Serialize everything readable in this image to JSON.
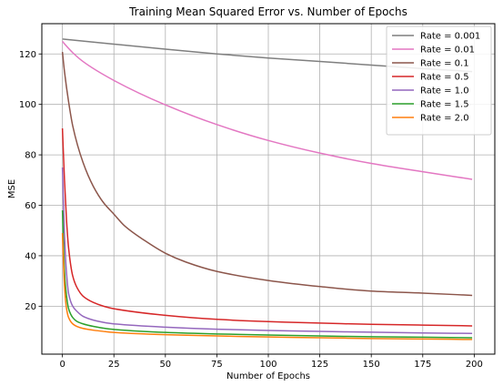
{
  "chart_data": {
    "type": "line",
    "title": "Training Mean Squared Error vs. Number of Epochs",
    "xlabel": "Number of Epochs",
    "ylabel": "MSE",
    "xlim": [
      -10,
      210
    ],
    "ylim": [
      1,
      132
    ],
    "xticks": [
      0,
      25,
      50,
      75,
      100,
      125,
      150,
      175,
      200
    ],
    "yticks": [
      20,
      40,
      60,
      80,
      100,
      120
    ],
    "grid": true,
    "legend_position": "top-right",
    "series": [
      {
        "name": "Rate = 0.001",
        "color": "#7f7f7f",
        "x": [
          0,
          25,
          50,
          75,
          100,
          125,
          150,
          175,
          199
        ],
        "y": [
          125.9,
          123.9,
          121.9,
          120.0,
          118.4,
          117.0,
          115.6,
          114.2,
          113.0
        ]
      },
      {
        "name": "Rate = 0.01",
        "color": "#e377c2",
        "x": [
          0,
          1,
          5,
          10,
          25,
          50,
          75,
          100,
          125,
          150,
          175,
          199
        ],
        "y": [
          125.0,
          124.0,
          120.5,
          117.0,
          109.5,
          99.8,
          92.0,
          85.7,
          80.7,
          76.6,
          73.3,
          70.3
        ]
      },
      {
        "name": "Rate = 0.1",
        "color": "#8c564b",
        "x": [
          0,
          1,
          3,
          5,
          10,
          15,
          20,
          25,
          30,
          40,
          50,
          60,
          75,
          100,
          125,
          150,
          175,
          199
        ],
        "y": [
          120.8,
          113.0,
          101.0,
          91.5,
          77.0,
          67.5,
          61.0,
          56.5,
          52.0,
          46.0,
          41.0,
          37.5,
          33.8,
          30.2,
          27.8,
          26.0,
          25.2,
          24.3
        ]
      },
      {
        "name": "Rate = 0.5",
        "color": "#d62728",
        "x": [
          0,
          1,
          2,
          3,
          5,
          7,
          10,
          15,
          20,
          25,
          50,
          75,
          100,
          125,
          150,
          175,
          199
        ],
        "y": [
          90.5,
          70.0,
          54.0,
          43.0,
          32.0,
          27.5,
          24.0,
          21.5,
          20.0,
          19.0,
          16.4,
          14.8,
          13.9,
          13.3,
          12.8,
          12.5,
          12.2
        ]
      },
      {
        "name": "Rate = 1.0",
        "color": "#9467bd",
        "x": [
          0,
          1,
          2,
          3,
          5,
          7,
          10,
          15,
          20,
          25,
          50,
          75,
          100,
          125,
          150,
          175,
          199
        ],
        "y": [
          75.0,
          48.0,
          33.0,
          25.0,
          20.0,
          18.0,
          16.0,
          14.5,
          13.6,
          13.0,
          11.7,
          10.9,
          10.4,
          10.0,
          9.7,
          9.4,
          9.2
        ]
      },
      {
        "name": "Rate = 1.5",
        "color": "#2ca02c",
        "x": [
          0,
          1,
          2,
          3,
          5,
          7,
          10,
          15,
          20,
          25,
          50,
          75,
          100,
          125,
          150,
          175,
          199
        ],
        "y": [
          58.0,
          34.0,
          24.0,
          19.0,
          15.5,
          14.0,
          13.0,
          12.0,
          11.3,
          10.8,
          9.6,
          9.0,
          8.6,
          8.2,
          7.9,
          7.7,
          7.5
        ]
      },
      {
        "name": "Rate = 2.0",
        "color": "#ff7f0e",
        "x": [
          0,
          1,
          2,
          3,
          5,
          7,
          10,
          15,
          20,
          25,
          50,
          75,
          100,
          125,
          150,
          175,
          199
        ],
        "y": [
          49.0,
          28.0,
          19.0,
          15.5,
          13.0,
          12.0,
          11.2,
          10.5,
          10.0,
          9.6,
          8.7,
          8.2,
          7.8,
          7.5,
          7.2,
          7.0,
          6.8
        ]
      }
    ]
  }
}
